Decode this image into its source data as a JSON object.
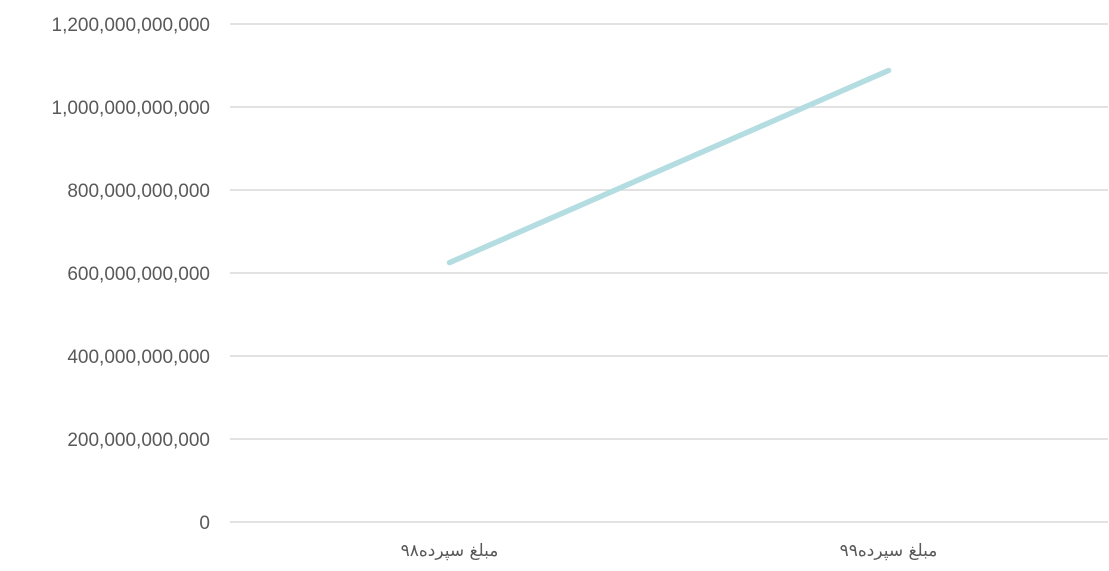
{
  "chart_data": {
    "type": "line",
    "categories": [
      "مبلغ سپرده۹۸",
      "مبلغ سپرده۹۹"
    ],
    "series": [
      {
        "values": [
          625000000000,
          1088000000000
        ],
        "color": "#b4dde2"
      }
    ],
    "yticks": [
      0,
      200000000000,
      400000000000,
      600000000000,
      800000000000,
      1000000000000,
      1200000000000
    ],
    "ytick_labels": [
      "0",
      "200,000,000,000",
      "400,000,000,000",
      "600,000,000,000",
      "800,000,000,000",
      "1,000,000,000,000",
      "1,200,000,000,000"
    ],
    "ylim": [
      0,
      1200000000000
    ],
    "grid": true,
    "legend": "none",
    "gridline_color": "#d9d9d9",
    "label_color": "#595959"
  }
}
